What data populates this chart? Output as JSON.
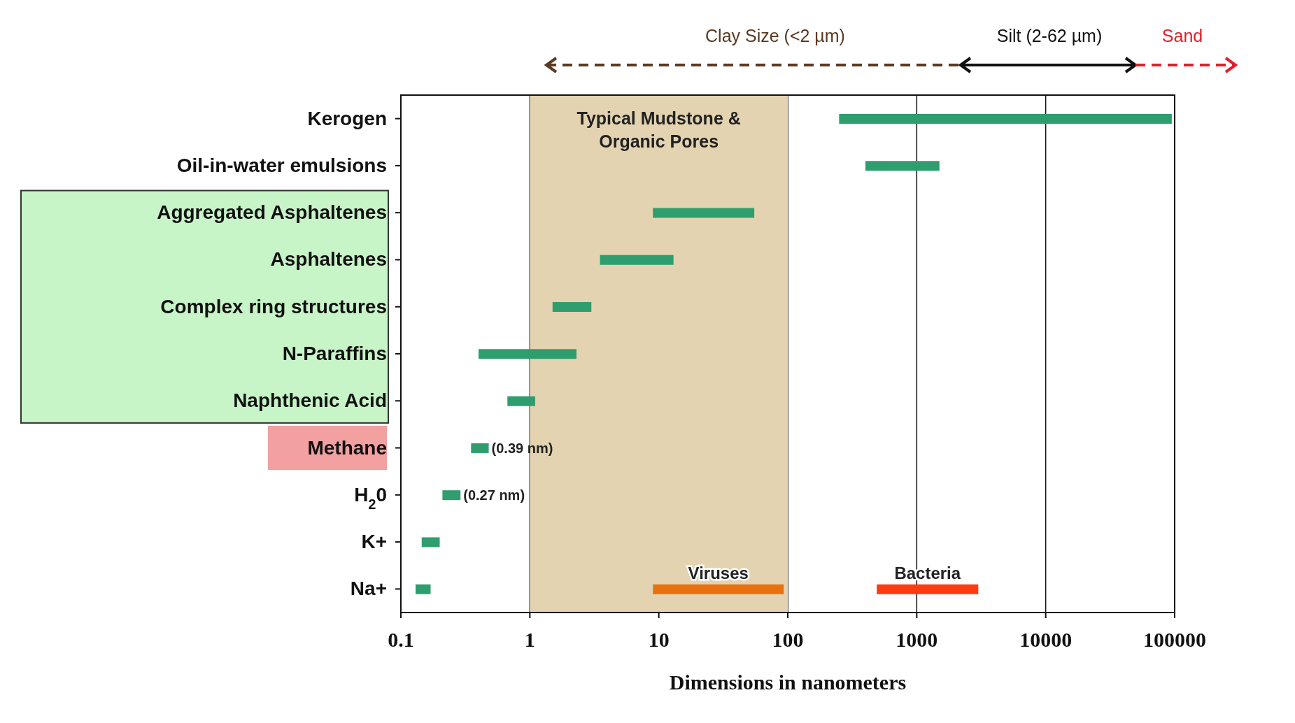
{
  "chart_data": {
    "type": "bar",
    "orientation": "horizontal",
    "log": "x",
    "grid": "x",
    "legend": false,
    "xlabel": "Dimensions in nanometers",
    "categories": [
      "Kerogen",
      "Oil-in-water emulsions",
      "Aggregated Asphaltenes",
      "Asphaltenes",
      "Complex ring structures",
      "N-Paraffins",
      "Naphthenic Acid",
      "Methane",
      "H$_{2}$0",
      "K+",
      "Na+"
    ],
    "xlim": [
      0.1,
      100000
    ],
    "xticks": [
      0.1,
      1,
      10,
      100,
      1000,
      10000,
      100000
    ],
    "series": [
      {
        "color": "#2e9e6e",
        "base": [
          250,
          400,
          9,
          3.5,
          1.5,
          0.4,
          0.67,
          0.35,
          0.21,
          0.145,
          0.13
        ],
        "values": [
          94750,
          1100,
          46,
          9.5,
          1.5,
          1.9,
          0.43,
          0.13,
          0.08,
          0.055,
          0.04
        ]
      },
      {
        "name": "Viruses",
        "color": "#e8700e",
        "base": [
          null,
          null,
          null,
          null,
          null,
          null,
          null,
          null,
          null,
          null,
          9
        ],
        "values": [
          null,
          null,
          null,
          null,
          null,
          null,
          null,
          null,
          null,
          null,
          84
        ]
      },
      {
        "name": "Bacteria",
        "color": "#ff3b12",
        "base": [
          null,
          null,
          null,
          null,
          null,
          null,
          null,
          null,
          null,
          null,
          490
        ],
        "values": [
          null,
          null,
          null,
          null,
          null,
          null,
          null,
          null,
          null,
          null,
          2510
        ]
      }
    ],
    "bands": [
      {
        "axis": "x",
        "from": 1,
        "to": 100,
        "label": "Typical Mudstone & Organic Pores",
        "color": "#e3d3b0"
      }
    ],
    "annotations": [
      "Clay Size (<2 µm)",
      "Silt (2-62 µm)",
      "Sand",
      {
        "text": "(0.39 nm)",
        "x": 0.48,
        "y": "Methane"
      },
      {
        "text": "(0.27 nm)",
        "x": 0.29,
        "y": "H$_{2}$0"
      }
    ]
  }
}
